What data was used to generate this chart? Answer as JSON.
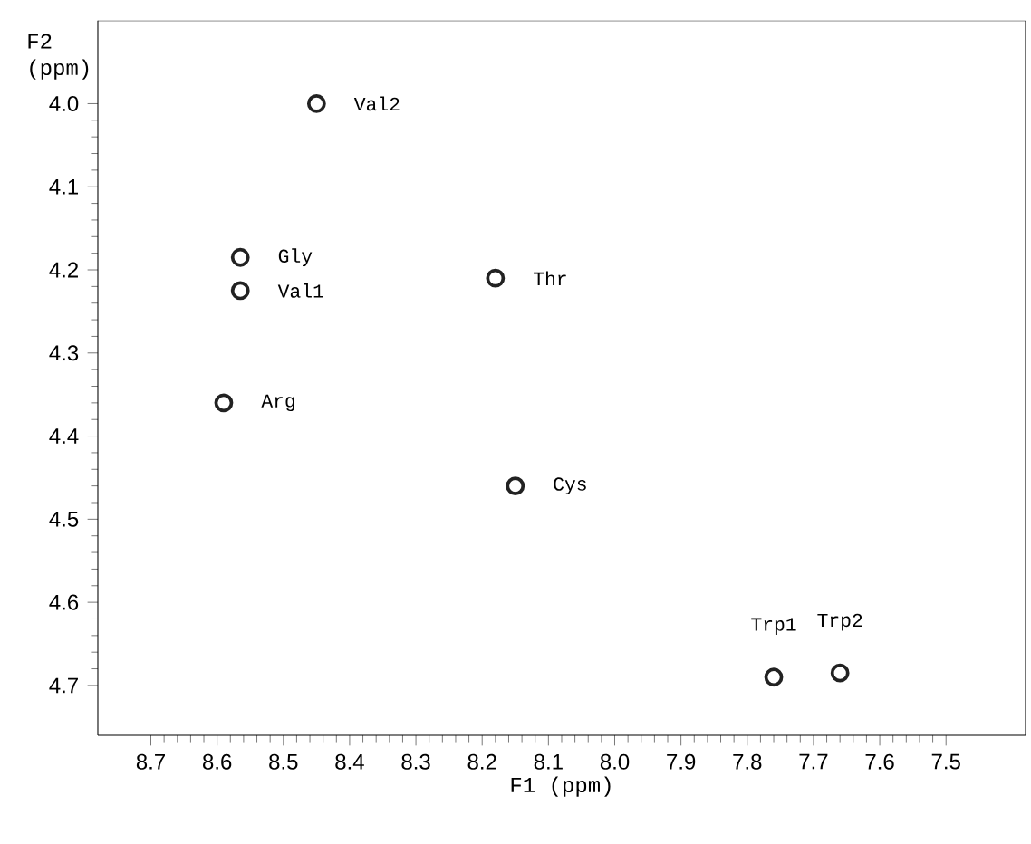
{
  "chart_data": {
    "type": "scatter",
    "xlabel": "F1 (ppm)",
    "ylabel": "F2 (ppm)",
    "x": [
      8.45,
      8.565,
      8.565,
      8.59,
      8.18,
      8.15,
      7.76,
      7.66
    ],
    "values": [
      4.0,
      4.185,
      4.225,
      4.36,
      4.21,
      4.46,
      4.69,
      4.685
    ],
    "color": "#222222",
    "marker": "circle",
    "xlim": [
      8.78,
      7.38
    ],
    "ylim": [
      4.76,
      3.9
    ],
    "xticks": [
      8.7,
      8.6,
      8.5,
      8.4,
      8.3,
      8.2,
      8.1,
      {
        "value": 8.0,
        "label": "8.0"
      },
      7.9,
      7.8,
      7.7,
      7.6,
      7.5
    ],
    "yticks": [
      {
        "value": 4.0,
        "label": "4.0"
      },
      4.1,
      4.2,
      4.3,
      4.4,
      4.5,
      4.6,
      4.7
    ],
    "annotations": [
      {
        "text": "Val2",
        "x": 8.45,
        "y": 4.0
      },
      {
        "text": "Gly",
        "x": 8.565,
        "y": 4.185
      },
      {
        "text": "Val1",
        "x": 8.565,
        "y": 4.225
      },
      {
        "text": "Arg",
        "x": 8.59,
        "y": 4.36
      },
      {
        "text": "Thr",
        "x": 8.18,
        "y": 4.21
      },
      {
        "text": "Cys",
        "x": 8.15,
        "y": 4.46
      },
      {
        "text": "Trp1",
        "x": 7.76,
        "y": 4.69
      },
      {
        "text": "Trp2",
        "x": 7.66,
        "y": 4.685
      }
    ]
  }
}
